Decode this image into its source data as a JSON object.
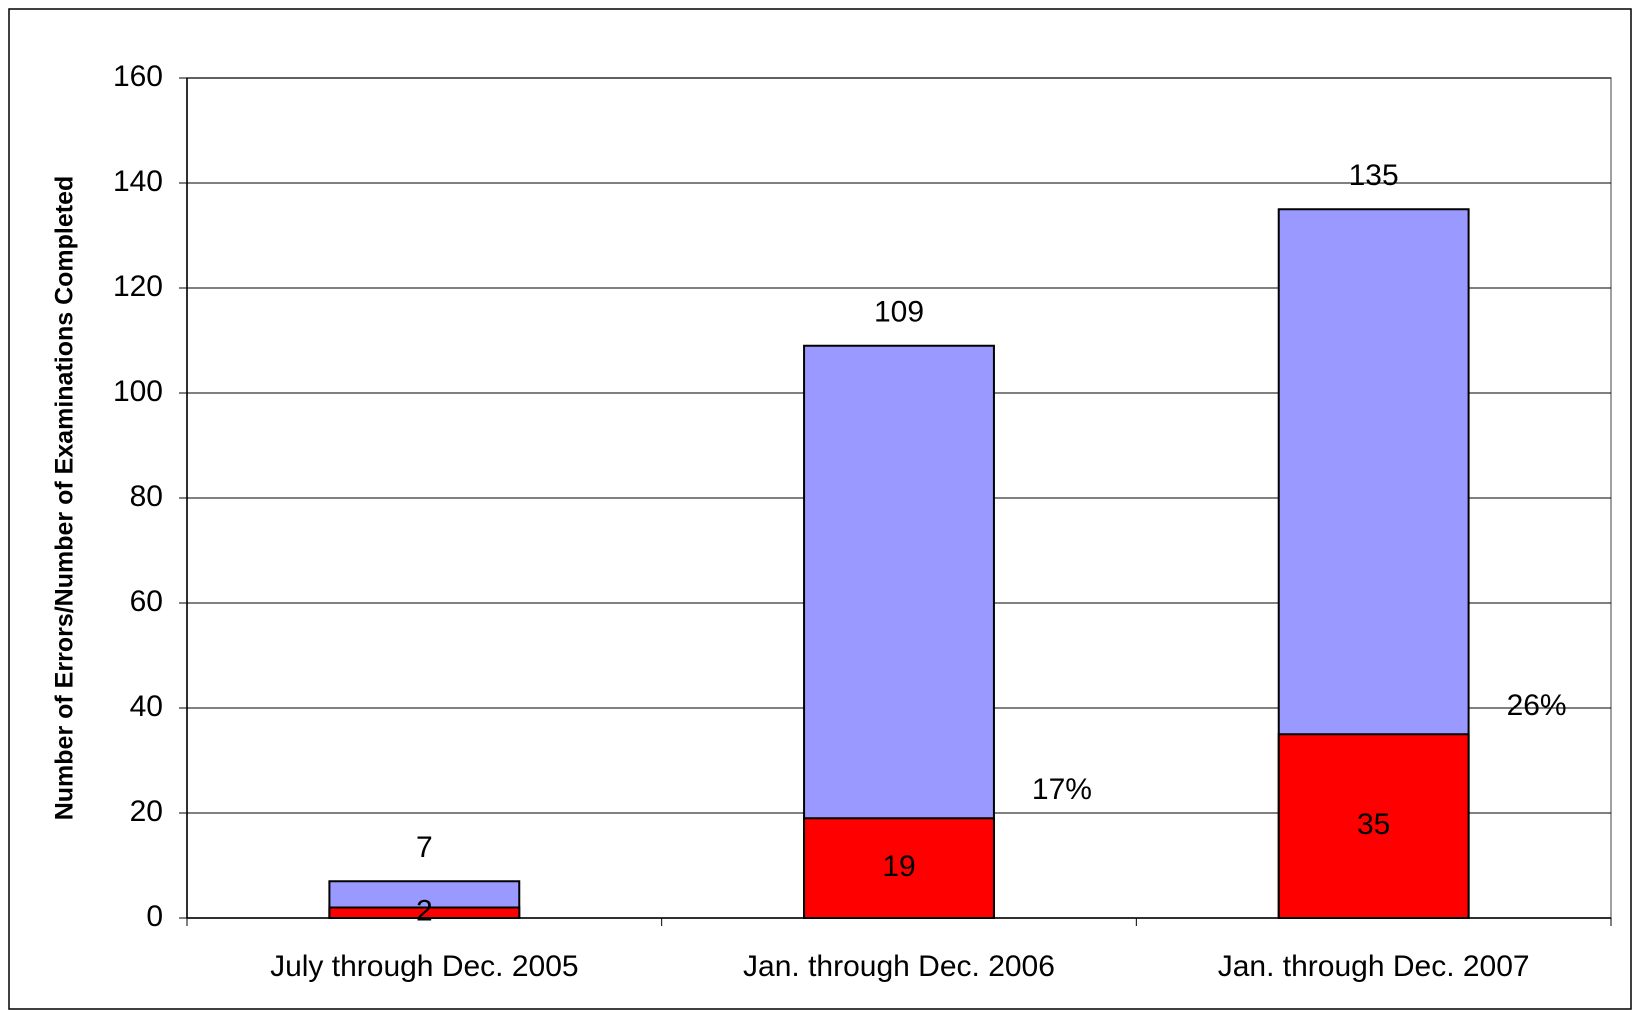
{
  "chart_data": {
    "type": "overlap-bar",
    "y_label": "Number of Errors/Number of Examinations Completed",
    "categories": [
      "July through Dec. 2005",
      "Jan. through Dec. 2006",
      "Jan. through Dec. 2007"
    ],
    "series": [
      {
        "color": "#9999ff",
        "values": [
          7,
          109,
          135
        ]
      },
      {
        "color": "#ff0000",
        "values": [
          2,
          19,
          35
        ]
      }
    ],
    "rate_labels": [
      null,
      {
        "value": 17,
        "label": "17%"
      },
      {
        "value": 26,
        "label": "26%"
      }
    ],
    "ylim": [
      0,
      160
    ],
    "yticks": [
      0,
      20,
      40,
      60,
      80,
      100,
      120,
      140,
      160
    ],
    "grid": true
  }
}
